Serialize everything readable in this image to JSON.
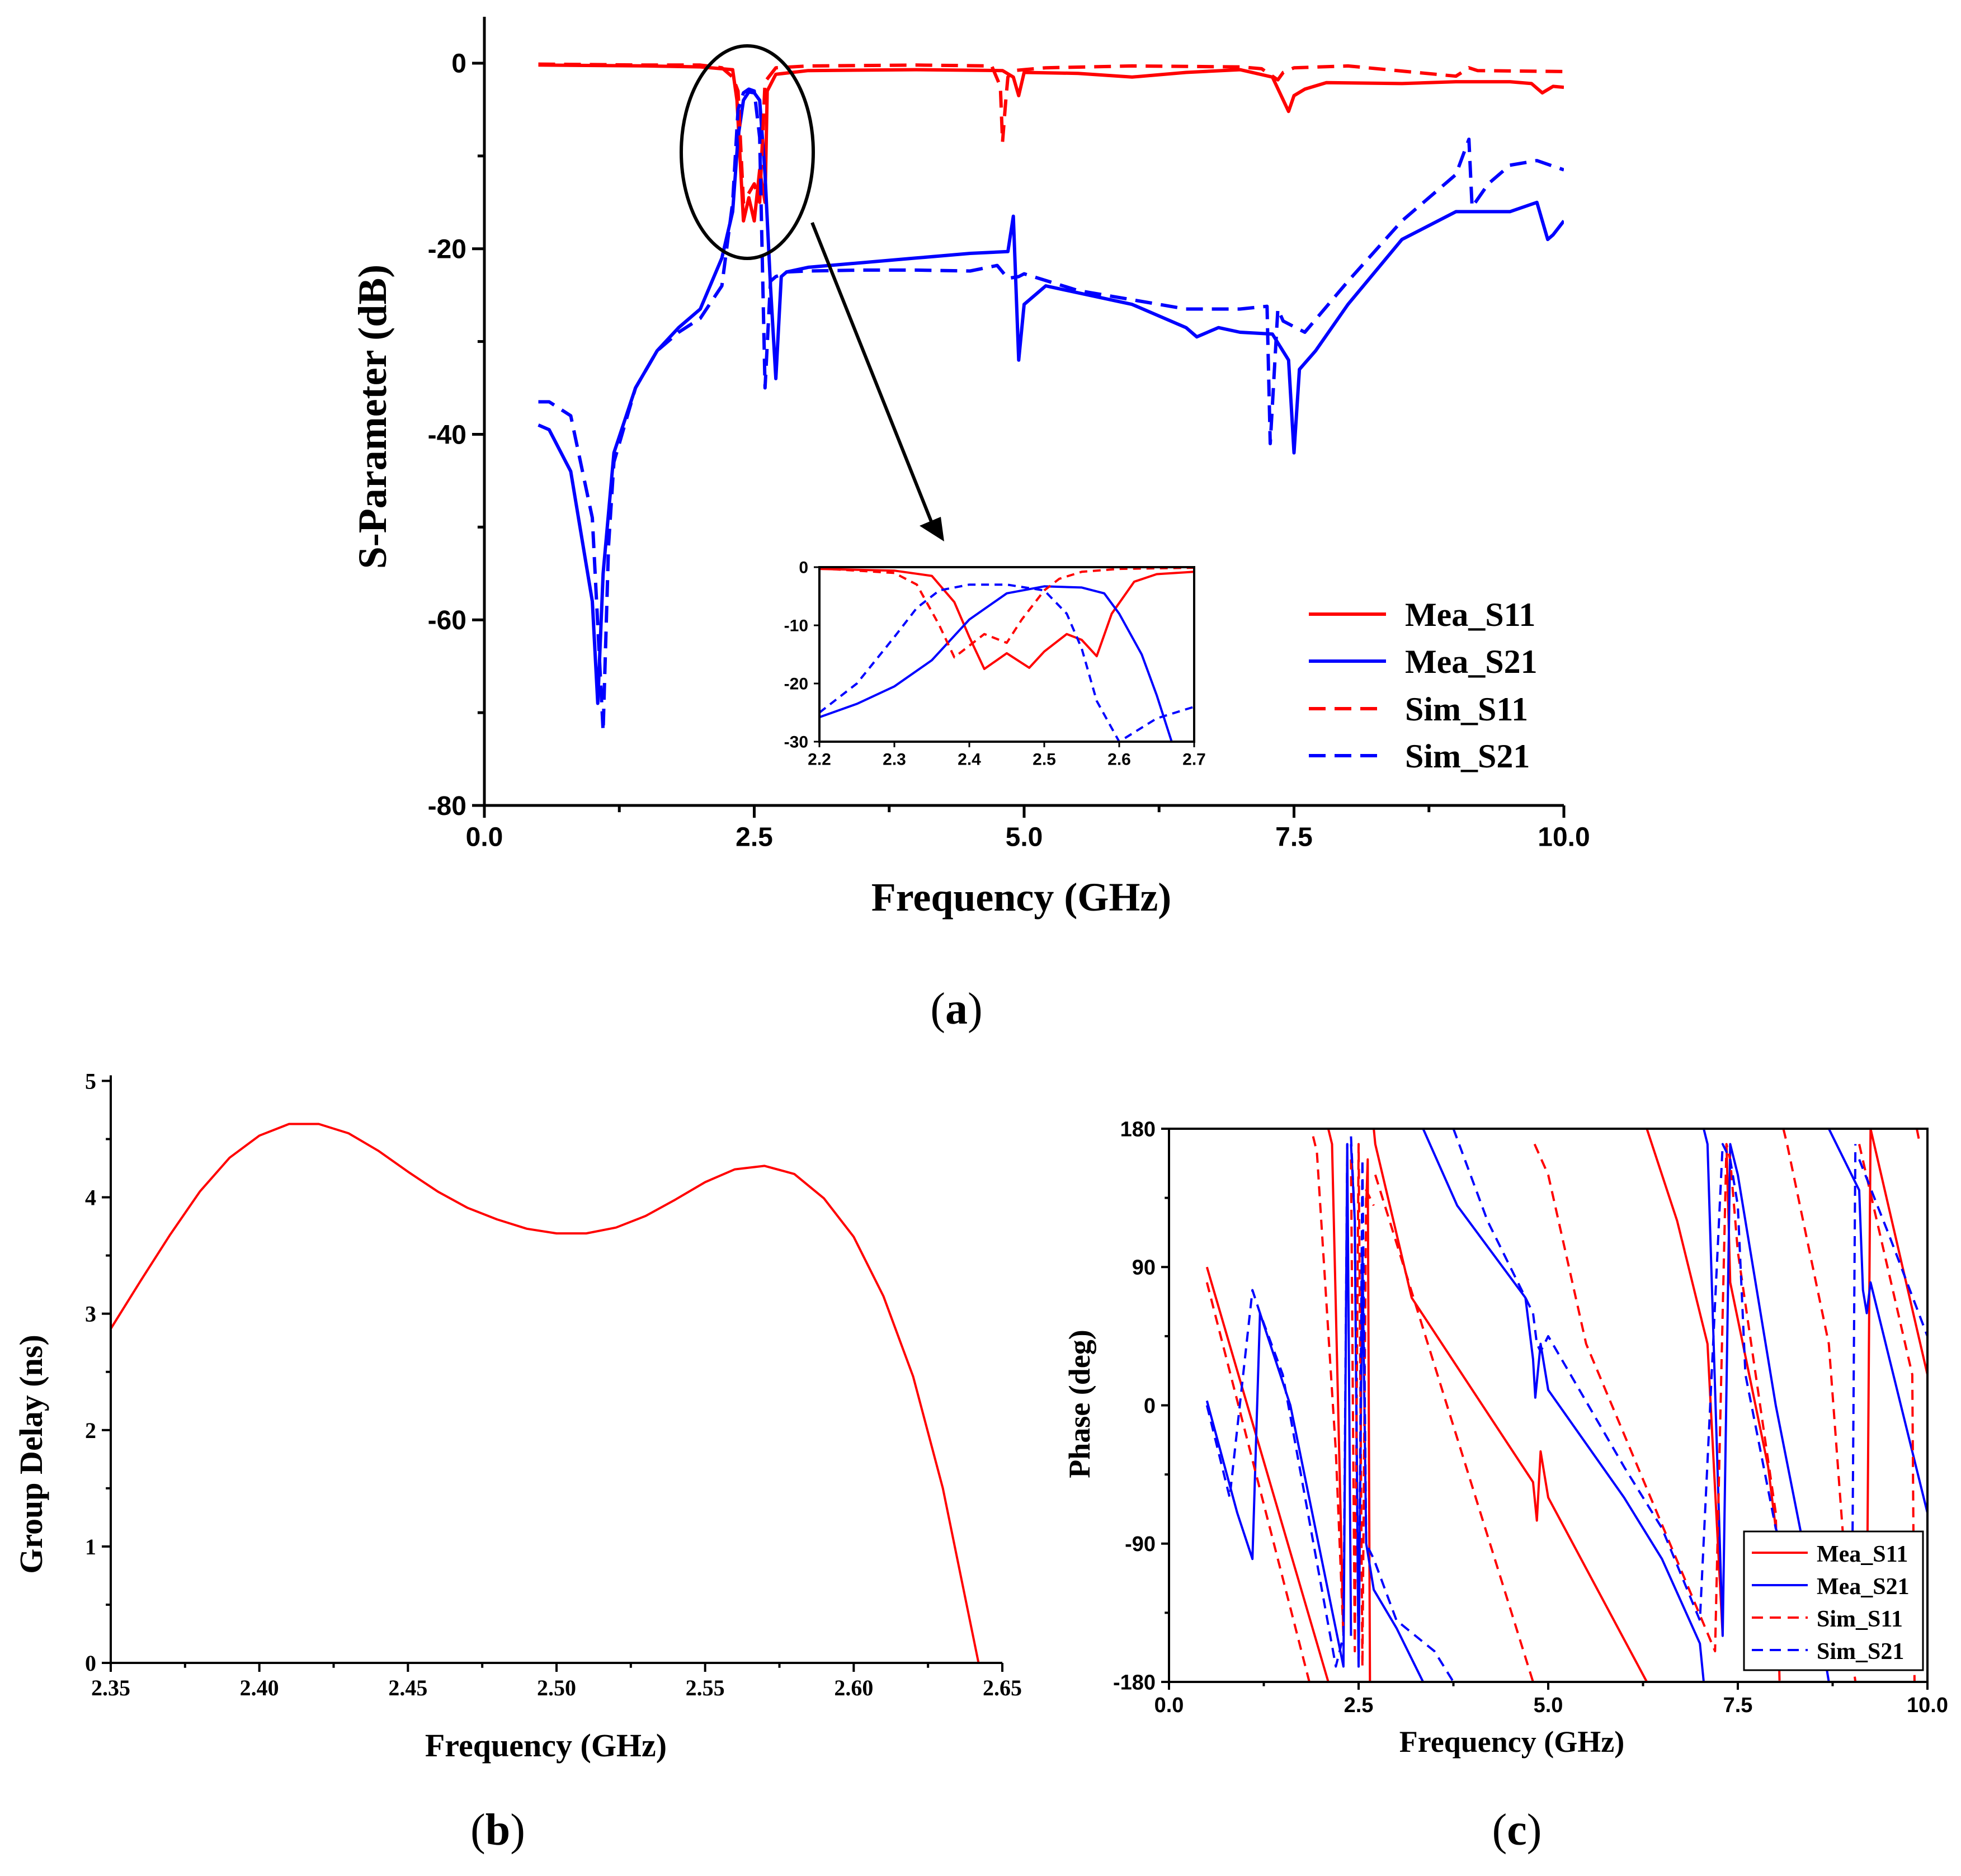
{
  "colors": {
    "mea_s11": "#ff0000",
    "mea_s21": "#0000ff",
    "sim_s11": "#ff0000",
    "sim_s21": "#0000ff",
    "axis": "#000000"
  },
  "chart_data": [
    {
      "id": "a",
      "caption_letter": "a",
      "type": "line",
      "xlabel": "Frequency (GHz)",
      "ylabel": "S-Parameter (dB)",
      "xlim": [
        0,
        10
      ],
      "ylim": [
        -80,
        5
      ],
      "xticks": [
        "0.0",
        "2.5",
        "5.0",
        "7.5",
        "10.0"
      ],
      "yticks": [
        "0",
        "-20",
        "-40",
        "-60",
        "-80"
      ],
      "legend": [
        "Mea_S11",
        "Mea_S21",
        "Sim_S11",
        "Sim_S21"
      ],
      "legend_position": "right-middle",
      "series": [
        {
          "name": "Mea_S11",
          "style": "solid",
          "color": "red",
          "x": [
            0.5,
            1.5,
            2.0,
            2.3,
            2.34,
            2.4,
            2.45,
            2.5,
            2.55,
            2.6,
            2.62,
            2.7,
            3.0,
            4.0,
            4.8,
            4.9,
            4.95,
            5.0,
            5.5,
            6.0,
            6.5,
            7.0,
            7.3,
            7.45,
            7.5,
            7.6,
            7.8,
            8.5,
            9.0,
            9.5,
            9.7,
            9.8,
            9.9,
            10.0
          ],
          "y": [
            -0.2,
            -0.3,
            -0.4,
            -0.7,
            -4,
            -17,
            -14.5,
            -17,
            -11.5,
            -15,
            -3,
            -1.2,
            -0.8,
            -0.7,
            -0.8,
            -1.5,
            -3.5,
            -1.0,
            -1.1,
            -1.5,
            -1.0,
            -0.7,
            -1.5,
            -5.2,
            -3.5,
            -2.8,
            -2.1,
            -2.2,
            -2.0,
            -2.0,
            -2.2,
            -3.2,
            -2.5,
            -2.6
          ]
        },
        {
          "name": "Mea_S21",
          "style": "solid",
          "color": "blue",
          "x": [
            0.5,
            0.6,
            0.8,
            1.0,
            1.05,
            1.1,
            1.2,
            1.4,
            1.6,
            1.8,
            2.0,
            2.2,
            2.3,
            2.35,
            2.4,
            2.45,
            2.5,
            2.55,
            2.6,
            2.65,
            2.7,
            2.75,
            2.8,
            3.0,
            3.5,
            4.0,
            4.5,
            4.85,
            4.9,
            4.95,
            5.0,
            5.2,
            6.0,
            6.5,
            6.6,
            6.8,
            7.0,
            7.3,
            7.45,
            7.5,
            7.55,
            7.7,
            8.0,
            8.5,
            9.0,
            9.5,
            9.75,
            9.85,
            9.9,
            10.0
          ],
          "y": [
            -39,
            -39.5,
            -44,
            -58,
            -69,
            -55,
            -42,
            -35,
            -31,
            -28.5,
            -26.5,
            -21,
            -16,
            -8,
            -4,
            -3.1,
            -3.2,
            -4,
            -12,
            -24,
            -34,
            -23,
            -22.5,
            -22,
            -21.5,
            -21,
            -20.5,
            -20.3,
            -16.5,
            -32,
            -26,
            -24,
            -26,
            -28.5,
            -29.5,
            -28.5,
            -29,
            -29.2,
            -32,
            -42,
            -33,
            -31,
            -26,
            -19,
            -16,
            -16,
            -15,
            -19,
            -18.5,
            -17
          ]
        },
        {
          "name": "Sim_S11",
          "style": "dashed",
          "color": "red",
          "x": [
            0.5,
            1.5,
            2.0,
            2.2,
            2.3,
            2.35,
            2.4,
            2.45,
            2.5,
            2.55,
            2.6,
            2.7,
            3.0,
            4.0,
            4.7,
            4.78,
            4.8,
            4.83,
            4.85,
            4.9,
            5.2,
            6.0,
            7.0,
            7.2,
            7.35,
            7.4,
            7.5,
            8.0,
            9.0,
            9.12,
            9.2,
            10.0
          ],
          "y": [
            -0.1,
            -0.2,
            -0.2,
            -0.5,
            -1.5,
            -3,
            -15,
            -14,
            -13,
            -15,
            -2,
            -0.5,
            -0.3,
            -0.2,
            -0.3,
            -2.5,
            -8.5,
            -4,
            -1.5,
            -0.8,
            -0.5,
            -0.3,
            -0.4,
            -0.6,
            -1.8,
            -1.0,
            -0.5,
            -0.3,
            -1.4,
            -0.5,
            -0.8,
            -0.9
          ]
        },
        {
          "name": "Sim_S21",
          "style": "dashed",
          "color": "blue",
          "x": [
            0.5,
            0.6,
            0.8,
            1.0,
            1.1,
            1.15,
            1.2,
            1.4,
            1.6,
            1.8,
            2.0,
            2.2,
            2.3,
            2.35,
            2.4,
            2.45,
            2.5,
            2.55,
            2.6,
            2.65,
            2.7,
            2.75,
            2.8,
            3.0,
            3.5,
            4.0,
            4.5,
            4.75,
            4.85,
            4.95,
            5.0,
            5.5,
            6.0,
            6.5,
            7.0,
            7.25,
            7.28,
            7.35,
            7.4,
            7.6,
            8.0,
            8.5,
            9.0,
            9.12,
            9.15,
            9.3,
            9.5,
            9.75,
            10.0
          ],
          "y": [
            -36.5,
            -36.5,
            -38,
            -49,
            -72,
            -52,
            -43,
            -35,
            -31,
            -29,
            -27.5,
            -24,
            -15,
            -5,
            -3.2,
            -2.8,
            -3.0,
            -8,
            -35,
            -23.5,
            -23,
            -22.8,
            -22.5,
            -22.4,
            -22.3,
            -22.3,
            -22.4,
            -21.8,
            -23.2,
            -23,
            -22.7,
            -24.5,
            -25.5,
            -26.5,
            -26.5,
            -26.2,
            -41,
            -26.5,
            -27.8,
            -29,
            -23.5,
            -17,
            -12,
            -8.2,
            -15.5,
            -13,
            -11,
            -10.5,
            -11.5
          ]
        }
      ],
      "inset": {
        "xlim": [
          2.2,
          2.7
        ],
        "ylim": [
          -30,
          0
        ],
        "xticks": [
          "2.2",
          "2.3",
          "2.4",
          "2.5",
          "2.6",
          "2.7"
        ],
        "yticks": [
          "0",
          "-10",
          "-20",
          "-30"
        ],
        "series": [
          {
            "name": "Mea_S11",
            "style": "solid",
            "color": "red",
            "x": [
              2.2,
              2.3,
              2.35,
              2.38,
              2.4,
              2.42,
              2.45,
              2.48,
              2.5,
              2.53,
              2.55,
              2.57,
              2.59,
              2.62,
              2.65,
              2.7
            ],
            "y": [
              -0.3,
              -0.6,
              -1.5,
              -6,
              -12,
              -17.5,
              -14.8,
              -17.3,
              -14.5,
              -11.5,
              -12.5,
              -15.3,
              -8,
              -2.5,
              -1.2,
              -0.8
            ]
          },
          {
            "name": "Mea_S21",
            "style": "solid",
            "color": "blue",
            "x": [
              2.2,
              2.25,
              2.3,
              2.35,
              2.4,
              2.45,
              2.5,
              2.55,
              2.58,
              2.6,
              2.63,
              2.65,
              2.67
            ],
            "y": [
              -25.8,
              -23.5,
              -20.5,
              -16,
              -9,
              -4.5,
              -3.3,
              -3.5,
              -4.5,
              -8,
              -15,
              -22,
              -30
            ]
          },
          {
            "name": "Sim_S11",
            "style": "dashed",
            "color": "red",
            "x": [
              2.2,
              2.3,
              2.33,
              2.36,
              2.38,
              2.4,
              2.42,
              2.45,
              2.47,
              2.5,
              2.52,
              2.55,
              2.6,
              2.7
            ],
            "y": [
              -0.2,
              -1,
              -3,
              -10,
              -15.5,
              -13.5,
              -11.5,
              -13,
              -9,
              -4,
              -2,
              -0.8,
              -0.3,
              -0.1
            ]
          },
          {
            "name": "Sim_S21",
            "style": "dashed",
            "color": "blue",
            "x": [
              2.2,
              2.25,
              2.3,
              2.33,
              2.36,
              2.4,
              2.45,
              2.5,
              2.53,
              2.55,
              2.57,
              2.6,
              2.65,
              2.7
            ],
            "y": [
              -25,
              -20,
              -12,
              -7,
              -4,
              -3,
              -3,
              -4,
              -8,
              -14,
              -23,
              -30,
              -26,
              -24
            ]
          }
        ]
      }
    },
    {
      "id": "b",
      "caption_letter": "b",
      "type": "line",
      "xlabel": "Frequency (GHz)",
      "ylabel": "Group Delay (ns)",
      "xlim": [
        2.35,
        2.65
      ],
      "ylim": [
        0,
        5
      ],
      "xticks": [
        "2.35",
        "2.40",
        "2.45",
        "2.50",
        "2.55",
        "2.60",
        "2.65"
      ],
      "yticks": [
        "0",
        "1",
        "2",
        "3",
        "4",
        "5"
      ],
      "series": [
        {
          "name": "Group Delay",
          "style": "solid",
          "color": "red",
          "x": [
            2.35,
            2.36,
            2.37,
            2.38,
            2.39,
            2.4,
            2.41,
            2.42,
            2.43,
            2.44,
            2.45,
            2.46,
            2.47,
            2.48,
            2.49,
            2.5,
            2.51,
            2.52,
            2.53,
            2.54,
            2.55,
            2.56,
            2.57,
            2.58,
            2.59,
            2.6,
            2.61,
            2.62,
            2.63,
            2.642
          ],
          "y": [
            2.87,
            3.28,
            3.68,
            4.05,
            4.34,
            4.53,
            4.63,
            4.63,
            4.55,
            4.4,
            4.22,
            4.05,
            3.91,
            3.81,
            3.73,
            3.69,
            3.69,
            3.74,
            3.84,
            3.98,
            4.13,
            4.24,
            4.27,
            4.2,
            3.99,
            3.66,
            3.15,
            2.46,
            1.5,
            0.0
          ]
        }
      ]
    },
    {
      "id": "c",
      "caption_letter": "c",
      "type": "line",
      "xlabel": "Frequency (GHz)",
      "ylabel": "Phase (deg)",
      "xlim": [
        0,
        10
      ],
      "ylim": [
        -180,
        180
      ],
      "xticks": [
        "0.0",
        "2.5",
        "5.0",
        "7.5",
        "10.0"
      ],
      "yticks": [
        "180",
        "90",
        "0",
        "-90",
        "-180"
      ],
      "legend": [
        "Mea_S11",
        "Mea_S21",
        "Sim_S11",
        "Sim_S21"
      ],
      "legend_position": "bottom-right",
      "series": [
        {
          "name": "Mea_S11",
          "style": "solid",
          "color": "red",
          "x": [
            0.5,
            2.1,
            null,
            2.1,
            2.15,
            2.3,
            null,
            2.6,
            2.62,
            2.65,
            null,
            2.7,
            2.72,
            3.2,
            4.8,
            4.85,
            4.9,
            5.0,
            6.3,
            null,
            6.3,
            6.7,
            7.1,
            7.3,
            null,
            7.35,
            7.4,
            7.9,
            8.0,
            null,
            9.2,
            9.25,
            10.0
          ],
          "y": [
            90,
            -180,
            null,
            180,
            170,
            -150,
            null,
            130,
            160,
            -180,
            null,
            180,
            170,
            70,
            -50,
            -75,
            -30,
            -60,
            -180,
            null,
            180,
            120,
            40,
            -150,
            null,
            170,
            80,
            -40,
            -80,
            null,
            -150,
            180,
            20
          ]
        },
        {
          "name": "Mea_S21",
          "style": "solid",
          "color": "blue",
          "x": [
            0.5,
            0.9,
            1.1,
            1.2,
            1.6,
            2.3,
            2.35,
            2.4,
            null,
            2.4,
            2.45,
            2.5,
            2.55,
            2.6,
            2.7,
            3.0,
            3.35,
            null,
            3.35,
            3.8,
            4.7,
            4.8,
            4.83,
            4.9,
            5.0,
            6.0,
            6.5,
            7.0,
            7.05,
            null,
            7.05,
            7.1,
            7.3,
            7.4,
            7.5,
            8.0,
            8.6,
            8.7,
            null,
            8.7,
            9.1,
            9.15,
            9.2,
            9.25,
            10.0
          ],
          "y": [
            3,
            -70,
            -100,
            60,
            0,
            -170,
            170,
            -150,
            null,
            170,
            120,
            -170,
            100,
            -90,
            -120,
            -145,
            -180,
            null,
            180,
            130,
            70,
            30,
            5,
            40,
            10,
            -60,
            -100,
            -155,
            -180,
            null,
            180,
            170,
            -150,
            170,
            150,
            0,
            -150,
            -180,
            null,
            180,
            140,
            75,
            60,
            80,
            -70
          ]
        },
        {
          "name": "Sim_S11",
          "style": "dashed",
          "color": "red",
          "x": [
            0.5,
            1.85,
            null,
            1.9,
            1.95,
            2.2,
            2.3,
            null,
            2.4,
            2.45,
            2.5,
            2.55,
            2.6,
            2.7,
            null,
            2.72,
            4.8,
            null,
            4.82,
            5.0,
            5.5,
            7.2,
            7.35,
            7.4,
            7.5,
            8.0,
            8.05,
            null,
            8.1,
            8.15,
            8.7,
            9.0,
            9.05,
            null,
            9.1,
            9.8,
            9.83,
            null,
            9.86,
            9.9
          ],
          "y": [
            80,
            -180,
            null,
            175,
            165,
            -30,
            -150,
            null,
            160,
            -160,
            170,
            -170,
            140,
            130,
            null,
            150,
            -180,
            null,
            170,
            150,
            40,
            -160,
            170,
            160,
            100,
            -70,
            -180,
            null,
            180,
            170,
            40,
            -160,
            -180,
            null,
            170,
            20,
            -180,
            null,
            180,
            170
          ]
        },
        {
          "name": "Sim_S21",
          "style": "dashed",
          "color": "blue",
          "x": [
            0.5,
            0.8,
            1.1,
            1.2,
            1.5,
            2.2,
            2.3,
            2.35,
            null,
            2.4,
            2.45,
            2.5,
            2.55,
            2.6,
            2.7,
            3.0,
            3.5,
            3.75,
            null,
            3.75,
            4.2,
            4.8,
            4.85,
            4.9,
            5.0,
            6.0,
            6.5,
            7.0,
            7.3,
            7.4,
            7.5,
            7.6,
            8.0,
            8.5,
            9.0,
            9.05,
            null,
            9.1,
            9.5,
            10.0
          ],
          "y": [
            0,
            -60,
            75,
            60,
            20,
            -170,
            -150,
            170,
            null,
            175,
            120,
            -170,
            160,
            -90,
            -100,
            -140,
            -160,
            -180,
            null,
            180,
            120,
            60,
            40,
            35,
            45,
            -40,
            -80,
            -140,
            170,
            160,
            130,
            20,
            -80,
            -150,
            -170,
            170,
            null,
            160,
            110,
            45
          ]
        }
      ]
    }
  ]
}
